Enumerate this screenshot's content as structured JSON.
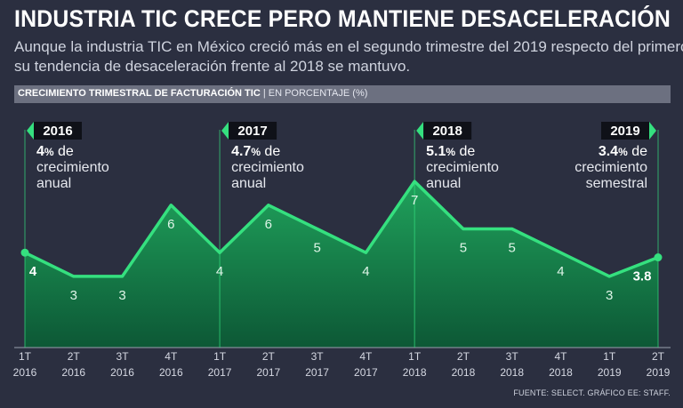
{
  "header": {
    "title": "INDUSTRIA TIC CRECE PERO MANTIENE DESACELERACIÓN",
    "subtitle_line1": "Aunque la industria TIC en México creció más en el segundo trimestre del 2019 respecto del primero,",
    "subtitle_line2": "su tendencia de desaceleración frente al 2018 se mantuvo."
  },
  "chart_header": {
    "main": "CRECIMIENTO TRIMESTRAL DE FACTURACIÓN TIC",
    "separator": " | ",
    "sub": "EN PORCENTAJE (%)"
  },
  "source": "FUENTE: SELECT. GRÁFICO EE: STAFF.",
  "colors": {
    "background": "#2b2f40",
    "line": "#35e07f",
    "area_top": "#1fa85d",
    "area_bottom": "#0b5a35",
    "label_box": "#0f1118"
  },
  "chart_data": {
    "type": "area",
    "title": "CRECIMIENTO TRIMESTRAL DE FACTURACIÓN TIC",
    "ylabel": "EN PORCENTAJE (%)",
    "ylim": [
      0,
      10
    ],
    "categories": [
      {
        "q": "1T",
        "y": "2016"
      },
      {
        "q": "2T",
        "y": "2016"
      },
      {
        "q": "3T",
        "y": "2016"
      },
      {
        "q": "4T",
        "y": "2016"
      },
      {
        "q": "1T",
        "y": "2017"
      },
      {
        "q": "2T",
        "y": "2017"
      },
      {
        "q": "3T",
        "y": "2017"
      },
      {
        "q": "4T",
        "y": "2017"
      },
      {
        "q": "1T",
        "y": "2018"
      },
      {
        "q": "2T",
        "y": "2018"
      },
      {
        "q": "3T",
        "y": "2018"
      },
      {
        "q": "4T",
        "y": "2018"
      },
      {
        "q": "1T",
        "y": "2019"
      },
      {
        "q": "2T",
        "y": "2019"
      }
    ],
    "values": [
      4,
      3,
      3,
      6,
      4,
      6,
      5,
      4,
      7,
      5,
      5,
      4,
      3,
      3.8
    ],
    "value_labels": [
      "4",
      "3",
      "3",
      "6",
      "4",
      "6",
      "5",
      "4",
      "7",
      "5",
      "5",
      "4",
      "3",
      "3.8"
    ],
    "annotations": [
      {
        "year": "2016",
        "at_index": 0,
        "value": "4",
        "unit": "%",
        "rest1": " de",
        "line2": "crecimiento",
        "line3": "anual",
        "align": "left"
      },
      {
        "year": "2017",
        "at_index": 4,
        "value": "4.7",
        "unit": "%",
        "rest1": " de",
        "line2": "crecimiento",
        "line3": "anual",
        "align": "left"
      },
      {
        "year": "2018",
        "at_index": 8,
        "value": "5.1",
        "unit": "%",
        "rest1": " de",
        "line2": "crecimiento",
        "line3": "anual",
        "align": "left"
      },
      {
        "year": "2019",
        "at_index": 13,
        "value": "3.4",
        "unit": "%",
        "rest1": " de",
        "line2": "crecimiento",
        "line3": "semestral",
        "align": "right"
      }
    ]
  }
}
